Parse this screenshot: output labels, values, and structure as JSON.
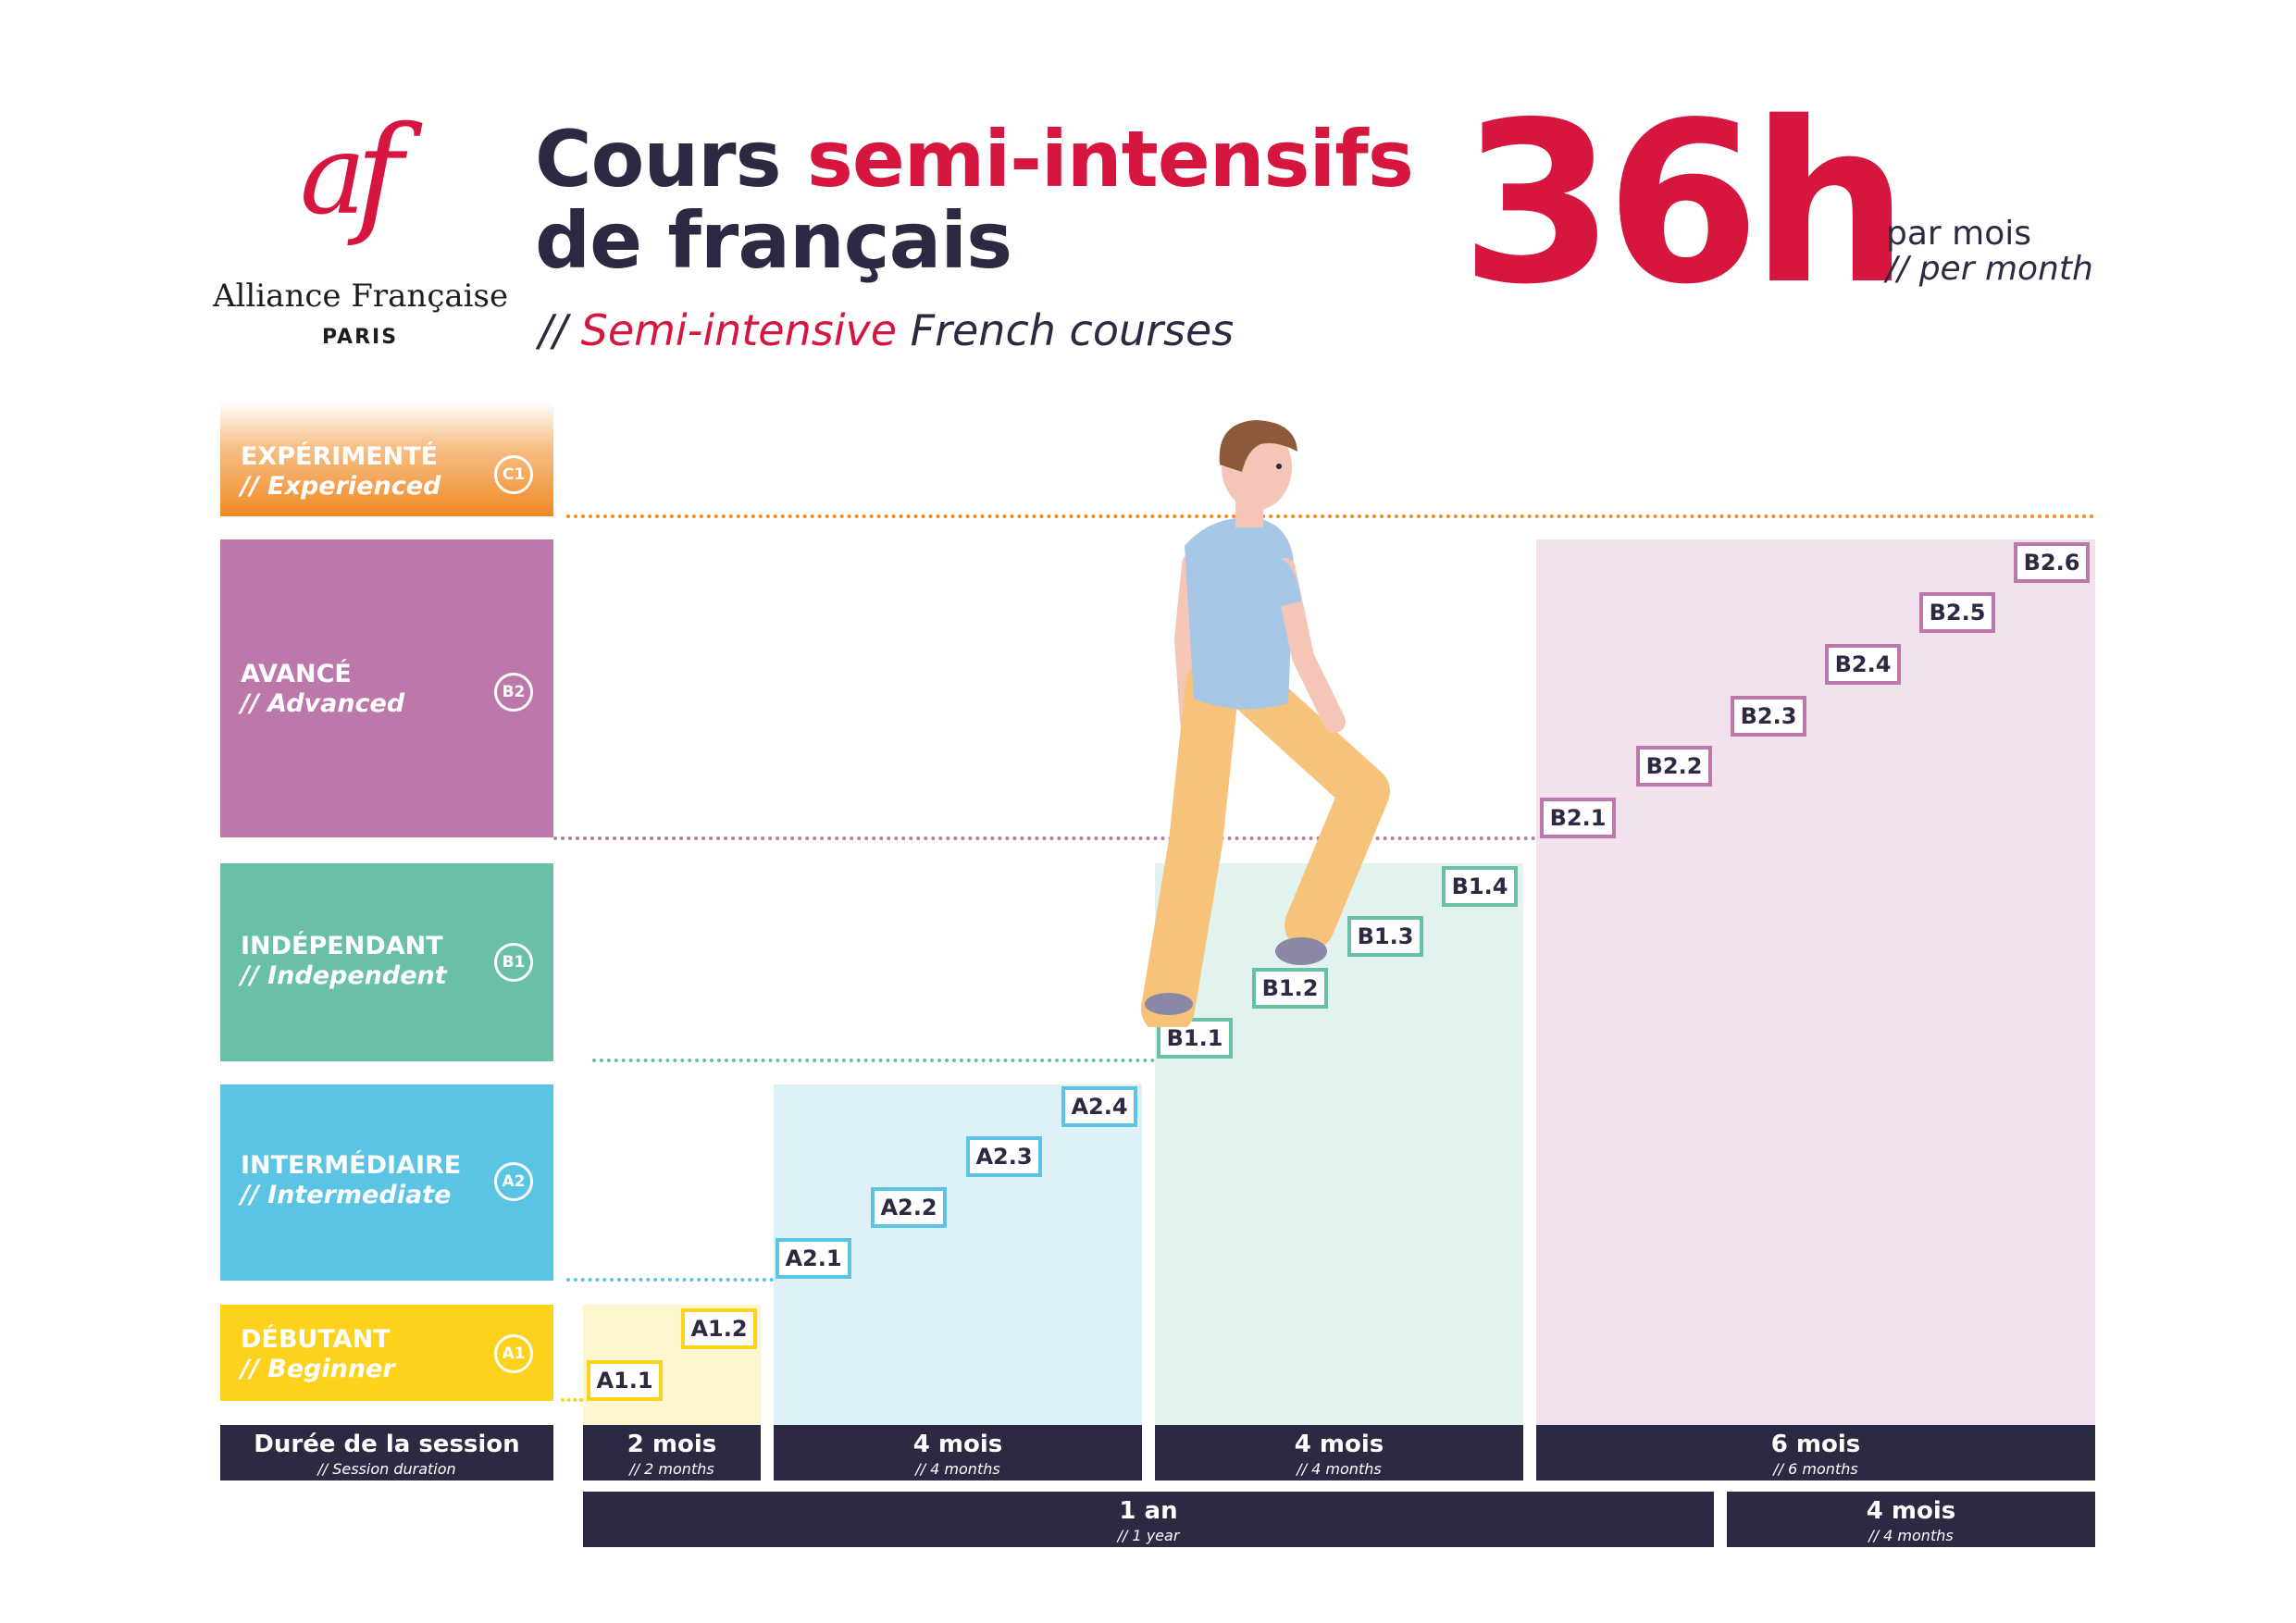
{
  "brand": {
    "logo_mark": "af",
    "name": "Alliance Française",
    "city": "PARIS",
    "color": "#d6163f"
  },
  "header": {
    "title_part1": "Cours ",
    "title_highlight": "semi-intensifs",
    "title_part2": "de français",
    "subtitle_prefix": "// ",
    "subtitle_highlight": "Semi-intensive",
    "subtitle_rest": " French courses",
    "hours": "36h",
    "per_fr": "par mois",
    "per_en": "// per month"
  },
  "levels": [
    {
      "id": "c1",
      "fr": "EXPÉRIMENTÉ",
      "en": "// Experienced",
      "badge": "C1",
      "color": "#f08a24"
    },
    {
      "id": "b2",
      "fr": "AVANCÉ",
      "en": "// Advanced",
      "badge": "B2",
      "color": "#bc77ab"
    },
    {
      "id": "b1",
      "fr": "INDÉPENDANT",
      "en": "// Independent",
      "badge": "B1",
      "color": "#6abfa8"
    },
    {
      "id": "a2",
      "fr": "INTERMÉDIAIRE",
      "en": "// Intermediate",
      "badge": "A2",
      "color": "#5bc3e3"
    },
    {
      "id": "a1",
      "fr": "DÉBUTANT",
      "en": "// Beginner",
      "badge": "A1",
      "color": "#fcd21d"
    }
  ],
  "steps": {
    "a1": [
      "A1.1",
      "A1.2"
    ],
    "a2": [
      "A2.1",
      "A2.2",
      "A2.3",
      "A2.4"
    ],
    "b1": [
      "B1.1",
      "B1.2",
      "B1.3",
      "B1.4"
    ],
    "b2": [
      "B2.1",
      "B2.2",
      "B2.3",
      "B2.4",
      "B2.5",
      "B2.6"
    ]
  },
  "durations": {
    "label": {
      "l1": "Durée de la session",
      "l2": "// Session duration"
    },
    "sessions": [
      {
        "l1": "2 mois",
        "l2": "// 2 months"
      },
      {
        "l1": "4 mois",
        "l2": "// 4 months"
      },
      {
        "l1": "4 mois",
        "l2": "// 4 months"
      },
      {
        "l1": "6 mois",
        "l2": "// 6 months"
      }
    ],
    "totals": [
      {
        "l1": "1 an",
        "l2": "// 1 year"
      },
      {
        "l1": "4 mois",
        "l2": "// 4 months"
      }
    ]
  },
  "illustration": "person-climbing-stairs"
}
